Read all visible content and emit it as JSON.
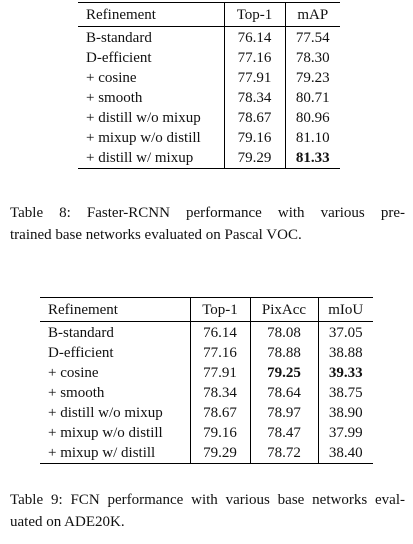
{
  "tables": [
    {
      "header": [
        "Refinement",
        "Top-1",
        "mAP"
      ],
      "rows": [
        [
          "B-standard",
          "76.14",
          "77.54"
        ],
        [
          "D-efficient",
          "77.16",
          "78.30"
        ],
        [
          "+ cosine",
          "77.91",
          "79.23"
        ],
        [
          "+ smooth",
          "78.34",
          "80.71"
        ],
        [
          "+ distill w/o mixup",
          "78.67",
          "80.96"
        ],
        [
          "+ mixup w/o distill",
          "79.16",
          "81.10"
        ],
        [
          "+ distill w/ mixup",
          "79.29",
          "81.33"
        ]
      ],
      "bold_cells": [
        [
          6,
          2
        ]
      ],
      "caption": [
        "Table 8: Faster-RCNN performance with various pre-",
        "trained base networks evaluated on Pascal VOC."
      ]
    },
    {
      "header": [
        "Refinement",
        "Top-1",
        "PixAcc",
        "mIoU"
      ],
      "rows": [
        [
          "B-standard",
          "76.14",
          "78.08",
          "37.05"
        ],
        [
          "D-efficient",
          "77.16",
          "78.88",
          "38.88"
        ],
        [
          "+ cosine",
          "77.91",
          "79.25",
          "39.33"
        ],
        [
          "+ smooth",
          "78.34",
          "78.64",
          "38.75"
        ],
        [
          "+ distill w/o mixup",
          "78.67",
          "78.97",
          "38.90"
        ],
        [
          "+ mixup w/o distill",
          "79.16",
          "78.47",
          "37.99"
        ],
        [
          "+ mixup w/ distill",
          "79.29",
          "78.72",
          "38.40"
        ]
      ],
      "bold_cells": [
        [
          2,
          2
        ],
        [
          2,
          3
        ]
      ],
      "caption": [
        "Table 9: FCN performance with various base networks eval-",
        "uated on ADE20K."
      ]
    }
  ]
}
